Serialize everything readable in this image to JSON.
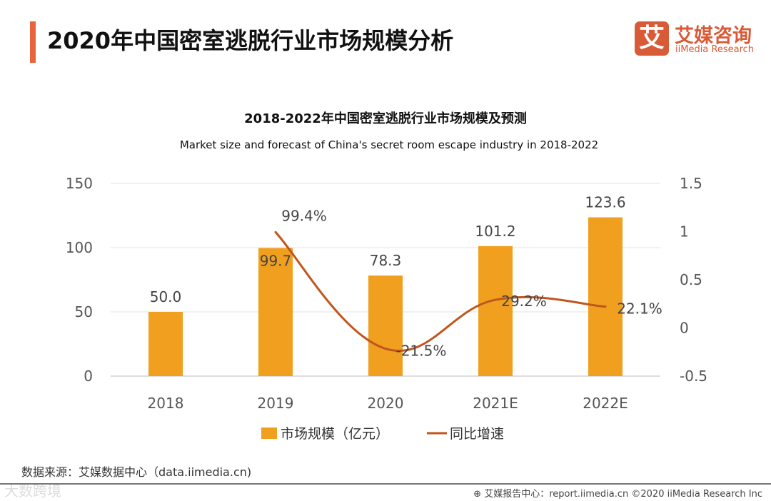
{
  "header": {
    "title": "2020年中国密室逃脱行业市场规模分析",
    "logo_mark": "艾",
    "logo_cn": "艾媒咨询",
    "logo_en": "iiMedia Research"
  },
  "chart_data": {
    "type": "bar+line",
    "title": "2018-2022年中国密室逃脱行业市场规模及预测",
    "subtitle": "Market size and forecast of China's secret room escape industry in 2018-2022",
    "categories": [
      "2018",
      "2019",
      "2020",
      "2021E",
      "2022E"
    ],
    "series": [
      {
        "name": "市场规模（亿元）",
        "type": "bar",
        "axis": "left",
        "values": [
          50.0,
          99.7,
          78.3,
          101.2,
          123.6
        ],
        "labels": [
          "50.0",
          "99.7",
          "78.3",
          "101.2",
          "123.6"
        ],
        "color": "#f0a01e"
      },
      {
        "name": "同比增速",
        "type": "line",
        "axis": "right",
        "values": [
          null,
          0.994,
          -0.215,
          0.292,
          0.221
        ],
        "labels": [
          "",
          "99.4%",
          "-21.5%",
          "29.2%",
          "22.1%"
        ],
        "color": "#c0561e"
      }
    ],
    "left_axis": {
      "ylim": [
        0,
        150
      ],
      "ticks": [
        "0",
        "50",
        "100",
        "150"
      ]
    },
    "right_axis": {
      "ylim": [
        -0.5,
        1.5
      ],
      "ticks": [
        "-0.5",
        "0",
        "0.5",
        "1",
        "1.5"
      ]
    },
    "legend": "bottom"
  },
  "footer": {
    "source": "数据来源：艾媒数据中心（data.iimedia.cn)",
    "watermark": "大数跨境",
    "credit": "艾媒报告中心：report.iimedia.cn   ©2020  iiMedia Research  Inc"
  }
}
